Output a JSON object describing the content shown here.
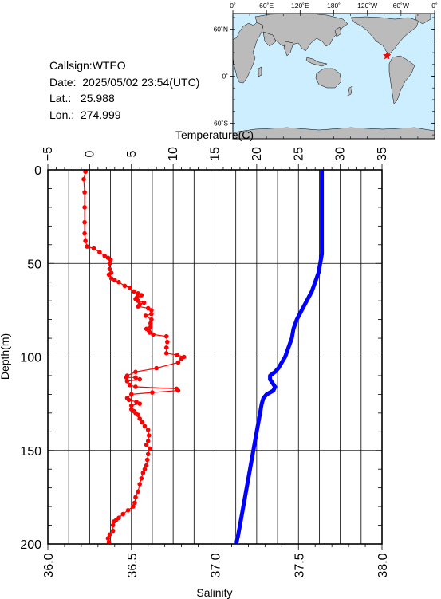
{
  "header": {
    "callsign_label": "Callsign:",
    "callsign": "WTEO",
    "date_label": "Date:",
    "date": "2025/05/02 23:54(UTC)",
    "lat_label": "Lat.:",
    "lat": "25.988",
    "lon_label": "Lon.:",
    "lon": "274.999"
  },
  "map": {
    "top_ticks": [
      "0˚",
      "60˚E",
      "120˚E",
      "180˚",
      "120˚W",
      "60˚W",
      "0˚"
    ],
    "left_ticks": [
      "60˚N",
      "0˚",
      "60˚S"
    ],
    "ocean_color": "#cceeff",
    "land_color": "#bbbbbb",
    "marker_color": "#ff0000",
    "marker_lat": 25.988,
    "marker_lon": 274.999
  },
  "chart_data": {
    "type": "line",
    "ylabel": "Depth(m)",
    "y_ticks": [
      "0",
      "50",
      "100",
      "150",
      "200"
    ],
    "ylim": [
      0,
      200
    ],
    "y_inverted": true,
    "top_axis": {
      "label": "Temperature(C)",
      "ticks": [
        "−5",
        "0",
        "5",
        "10",
        "15",
        "20",
        "25",
        "30",
        "35"
      ],
      "range": [
        -5,
        35
      ]
    },
    "bottom_axis": {
      "label": "Salinity",
      "ticks": [
        "36.0",
        "36.5",
        "37.0",
        "37.5",
        "38.0"
      ],
      "range": [
        36.0,
        38.0
      ]
    },
    "grid": true,
    "series": [
      {
        "axis": "top",
        "color": "#ff0000",
        "style": "line-with-points",
        "points": [
          [
            -0.5,
            1
          ],
          [
            -0.7,
            5
          ],
          [
            -0.6,
            12
          ],
          [
            -0.6,
            20
          ],
          [
            -0.6,
            28
          ],
          [
            -0.6,
            34
          ],
          [
            -0.5,
            38
          ],
          [
            -0.3,
            41
          ],
          [
            0.5,
            42
          ],
          [
            1.2,
            44
          ],
          [
            1.8,
            46
          ],
          [
            2.2,
            47
          ],
          [
            2.5,
            48
          ],
          [
            2.4,
            50
          ],
          [
            2.4,
            53
          ],
          [
            2.6,
            55
          ],
          [
            2.3,
            56
          ],
          [
            2.6,
            58
          ],
          [
            3.0,
            59
          ],
          [
            3.5,
            60
          ],
          [
            4.2,
            62
          ],
          [
            4.8,
            63
          ],
          [
            5.3,
            65
          ],
          [
            5.8,
            66
          ],
          [
            6.2,
            67
          ],
          [
            5.7,
            68
          ],
          [
            5.5,
            69
          ],
          [
            5.8,
            70
          ],
          [
            6.5,
            71
          ],
          [
            6.0,
            72
          ],
          [
            5.8,
            73
          ],
          [
            7.0,
            74
          ],
          [
            7.4,
            75
          ],
          [
            7.4,
            77
          ],
          [
            6.7,
            78
          ],
          [
            7.4,
            80
          ],
          [
            7.3,
            82
          ],
          [
            7.3,
            84
          ],
          [
            6.8,
            85
          ],
          [
            7.1,
            86
          ],
          [
            7.2,
            87
          ],
          [
            7.6,
            88
          ],
          [
            9.2,
            89
          ],
          [
            9.3,
            92
          ],
          [
            9.2,
            95
          ],
          [
            9.2,
            98
          ],
          [
            10.5,
            99
          ],
          [
            11.3,
            100
          ],
          [
            11.0,
            101
          ],
          [
            10.6,
            103
          ],
          [
            8.0,
            106
          ],
          [
            5.5,
            108
          ],
          [
            4.5,
            110
          ],
          [
            4.4,
            111
          ],
          [
            5.5,
            111
          ],
          [
            6.0,
            112
          ],
          [
            4.5,
            113
          ],
          [
            4.8,
            115
          ],
          [
            5.5,
            116
          ],
          [
            10.4,
            117
          ],
          [
            10.6,
            118
          ],
          [
            7.5,
            119
          ],
          [
            5.0,
            120
          ],
          [
            4.5,
            122
          ],
          [
            4.7,
            123
          ],
          [
            5.6,
            124
          ],
          [
            6.0,
            125
          ],
          [
            5.0,
            126
          ],
          [
            5.0,
            128
          ],
          [
            5.3,
            129
          ],
          [
            5.5,
            130
          ],
          [
            5.8,
            131
          ],
          [
            6.0,
            133
          ],
          [
            6.3,
            135
          ],
          [
            6.6,
            137
          ],
          [
            7.0,
            139
          ],
          [
            7.1,
            142
          ],
          [
            7.0,
            145
          ],
          [
            6.8,
            147
          ],
          [
            7.2,
            149
          ],
          [
            7.0,
            152
          ],
          [
            6.9,
            155
          ],
          [
            6.8,
            158
          ],
          [
            6.6,
            160
          ],
          [
            6.4,
            162
          ],
          [
            6.2,
            165
          ],
          [
            6.0,
            168
          ],
          [
            5.8,
            172
          ],
          [
            5.5,
            175
          ],
          [
            5.4,
            178
          ],
          [
            5.2,
            180
          ],
          [
            4.6,
            182
          ],
          [
            4.0,
            184
          ],
          [
            3.5,
            186
          ],
          [
            3.2,
            187
          ],
          [
            2.9,
            188
          ],
          [
            2.8,
            190
          ],
          [
            2.8,
            193
          ],
          [
            2.4,
            195
          ],
          [
            2.2,
            197
          ],
          [
            2.3,
            199
          ]
        ]
      },
      {
        "axis": "bottom",
        "color": "#0000ff",
        "style": "line",
        "points": [
          [
            37.64,
            1
          ],
          [
            37.64,
            10
          ],
          [
            37.64,
            20
          ],
          [
            37.64,
            30
          ],
          [
            37.64,
            40
          ],
          [
            37.64,
            45
          ],
          [
            37.63,
            50
          ],
          [
            37.62,
            55
          ],
          [
            37.6,
            60
          ],
          [
            37.58,
            65
          ],
          [
            37.55,
            70
          ],
          [
            37.52,
            75
          ],
          [
            37.49,
            80
          ],
          [
            37.47,
            85
          ],
          [
            37.46,
            90
          ],
          [
            37.44,
            95
          ],
          [
            37.42,
            100
          ],
          [
            37.4,
            103
          ],
          [
            37.38,
            106
          ],
          [
            37.36,
            108
          ],
          [
            37.33,
            110
          ],
          [
            37.33,
            112
          ],
          [
            37.36,
            116
          ],
          [
            37.35,
            118
          ],
          [
            37.31,
            120
          ],
          [
            37.29,
            122
          ],
          [
            37.28,
            125
          ],
          [
            37.27,
            130
          ],
          [
            37.26,
            135
          ],
          [
            37.25,
            140
          ],
          [
            37.24,
            145
          ],
          [
            37.23,
            150
          ],
          [
            37.22,
            155
          ],
          [
            37.21,
            160
          ],
          [
            37.2,
            165
          ],
          [
            37.19,
            170
          ],
          [
            37.18,
            175
          ],
          [
            37.17,
            180
          ],
          [
            37.16,
            185
          ],
          [
            37.15,
            190
          ],
          [
            37.14,
            195
          ],
          [
            37.13,
            199
          ]
        ]
      }
    ]
  }
}
